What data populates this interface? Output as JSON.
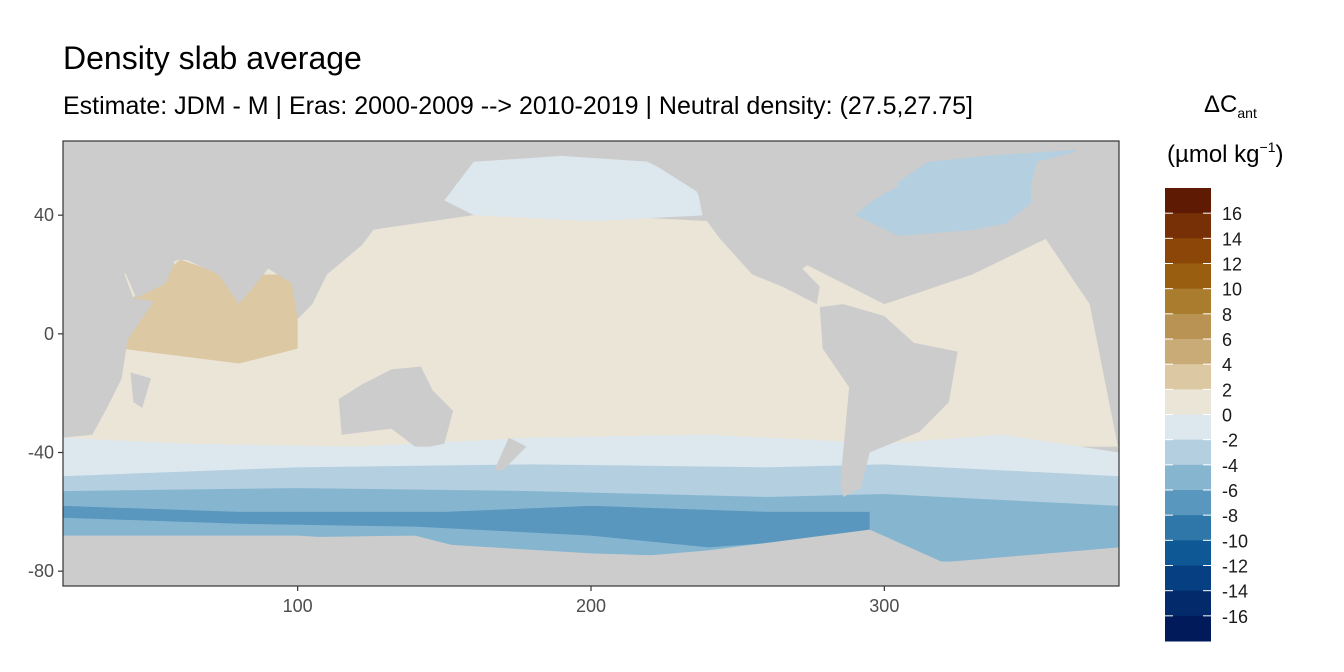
{
  "chart_data": {
    "type": "heatmap",
    "title": "Density slab average",
    "subtitle": "Estimate: JDM - M | Eras: 2000-2009 --> 2010-2019 | Neutral density: (27.5,27.75]",
    "xlabel": "",
    "ylabel": "",
    "xlim": [
      20,
      380
    ],
    "ylim": [
      -85,
      65
    ],
    "x_ticks": [
      100,
      200,
      300
    ],
    "y_ticks": [
      40,
      0,
      -40,
      -80
    ],
    "grid": false,
    "legend": {
      "position": "right",
      "title_main": "ΔC",
      "title_sub": "ant",
      "units_pre": "(µmol kg",
      "units_sup": "−1",
      "units_post": ")",
      "labels": [
        "16",
        "14",
        "12",
        "10",
        "8",
        "6",
        "4",
        "2",
        "0",
        "-2",
        "-4",
        "-6",
        "-8",
        "-10",
        "-12",
        "-14",
        "-16"
      ],
      "colors": [
        "#5e1a02",
        "#773005",
        "#8c4607",
        "#995e10",
        "#a97c2e",
        "#b99353",
        "#c9ab78",
        "#dcc8a2",
        "#ebe5d8",
        "#dde7ee",
        "#b3cfe0",
        "#86b5d0",
        "#5997be",
        "#2e77a8",
        "#0f5896",
        "#063f82",
        "#032b6b",
        "#001a5a"
      ]
    },
    "land_color": "#cccccc",
    "bands": [
      {
        "name": "north-pacific-high",
        "value": -1,
        "color": "#dde7ee"
      },
      {
        "name": "tropics-main",
        "value": 1,
        "color": "#ebe5d8"
      },
      {
        "name": "indian-ocean",
        "value": 3,
        "color": "#dcc8a2"
      },
      {
        "name": "southern-subtropical",
        "value": -1,
        "color": "#dde7ee"
      },
      {
        "name": "southern-mid",
        "value": -3,
        "color": "#b3cfe0"
      },
      {
        "name": "southern-high",
        "value": -5,
        "color": "#86b5d0"
      },
      {
        "name": "southern-polar",
        "value": -7,
        "color": "#5997be"
      },
      {
        "name": "north-atlantic",
        "value": -3,
        "color": "#b3cfe0"
      }
    ]
  }
}
